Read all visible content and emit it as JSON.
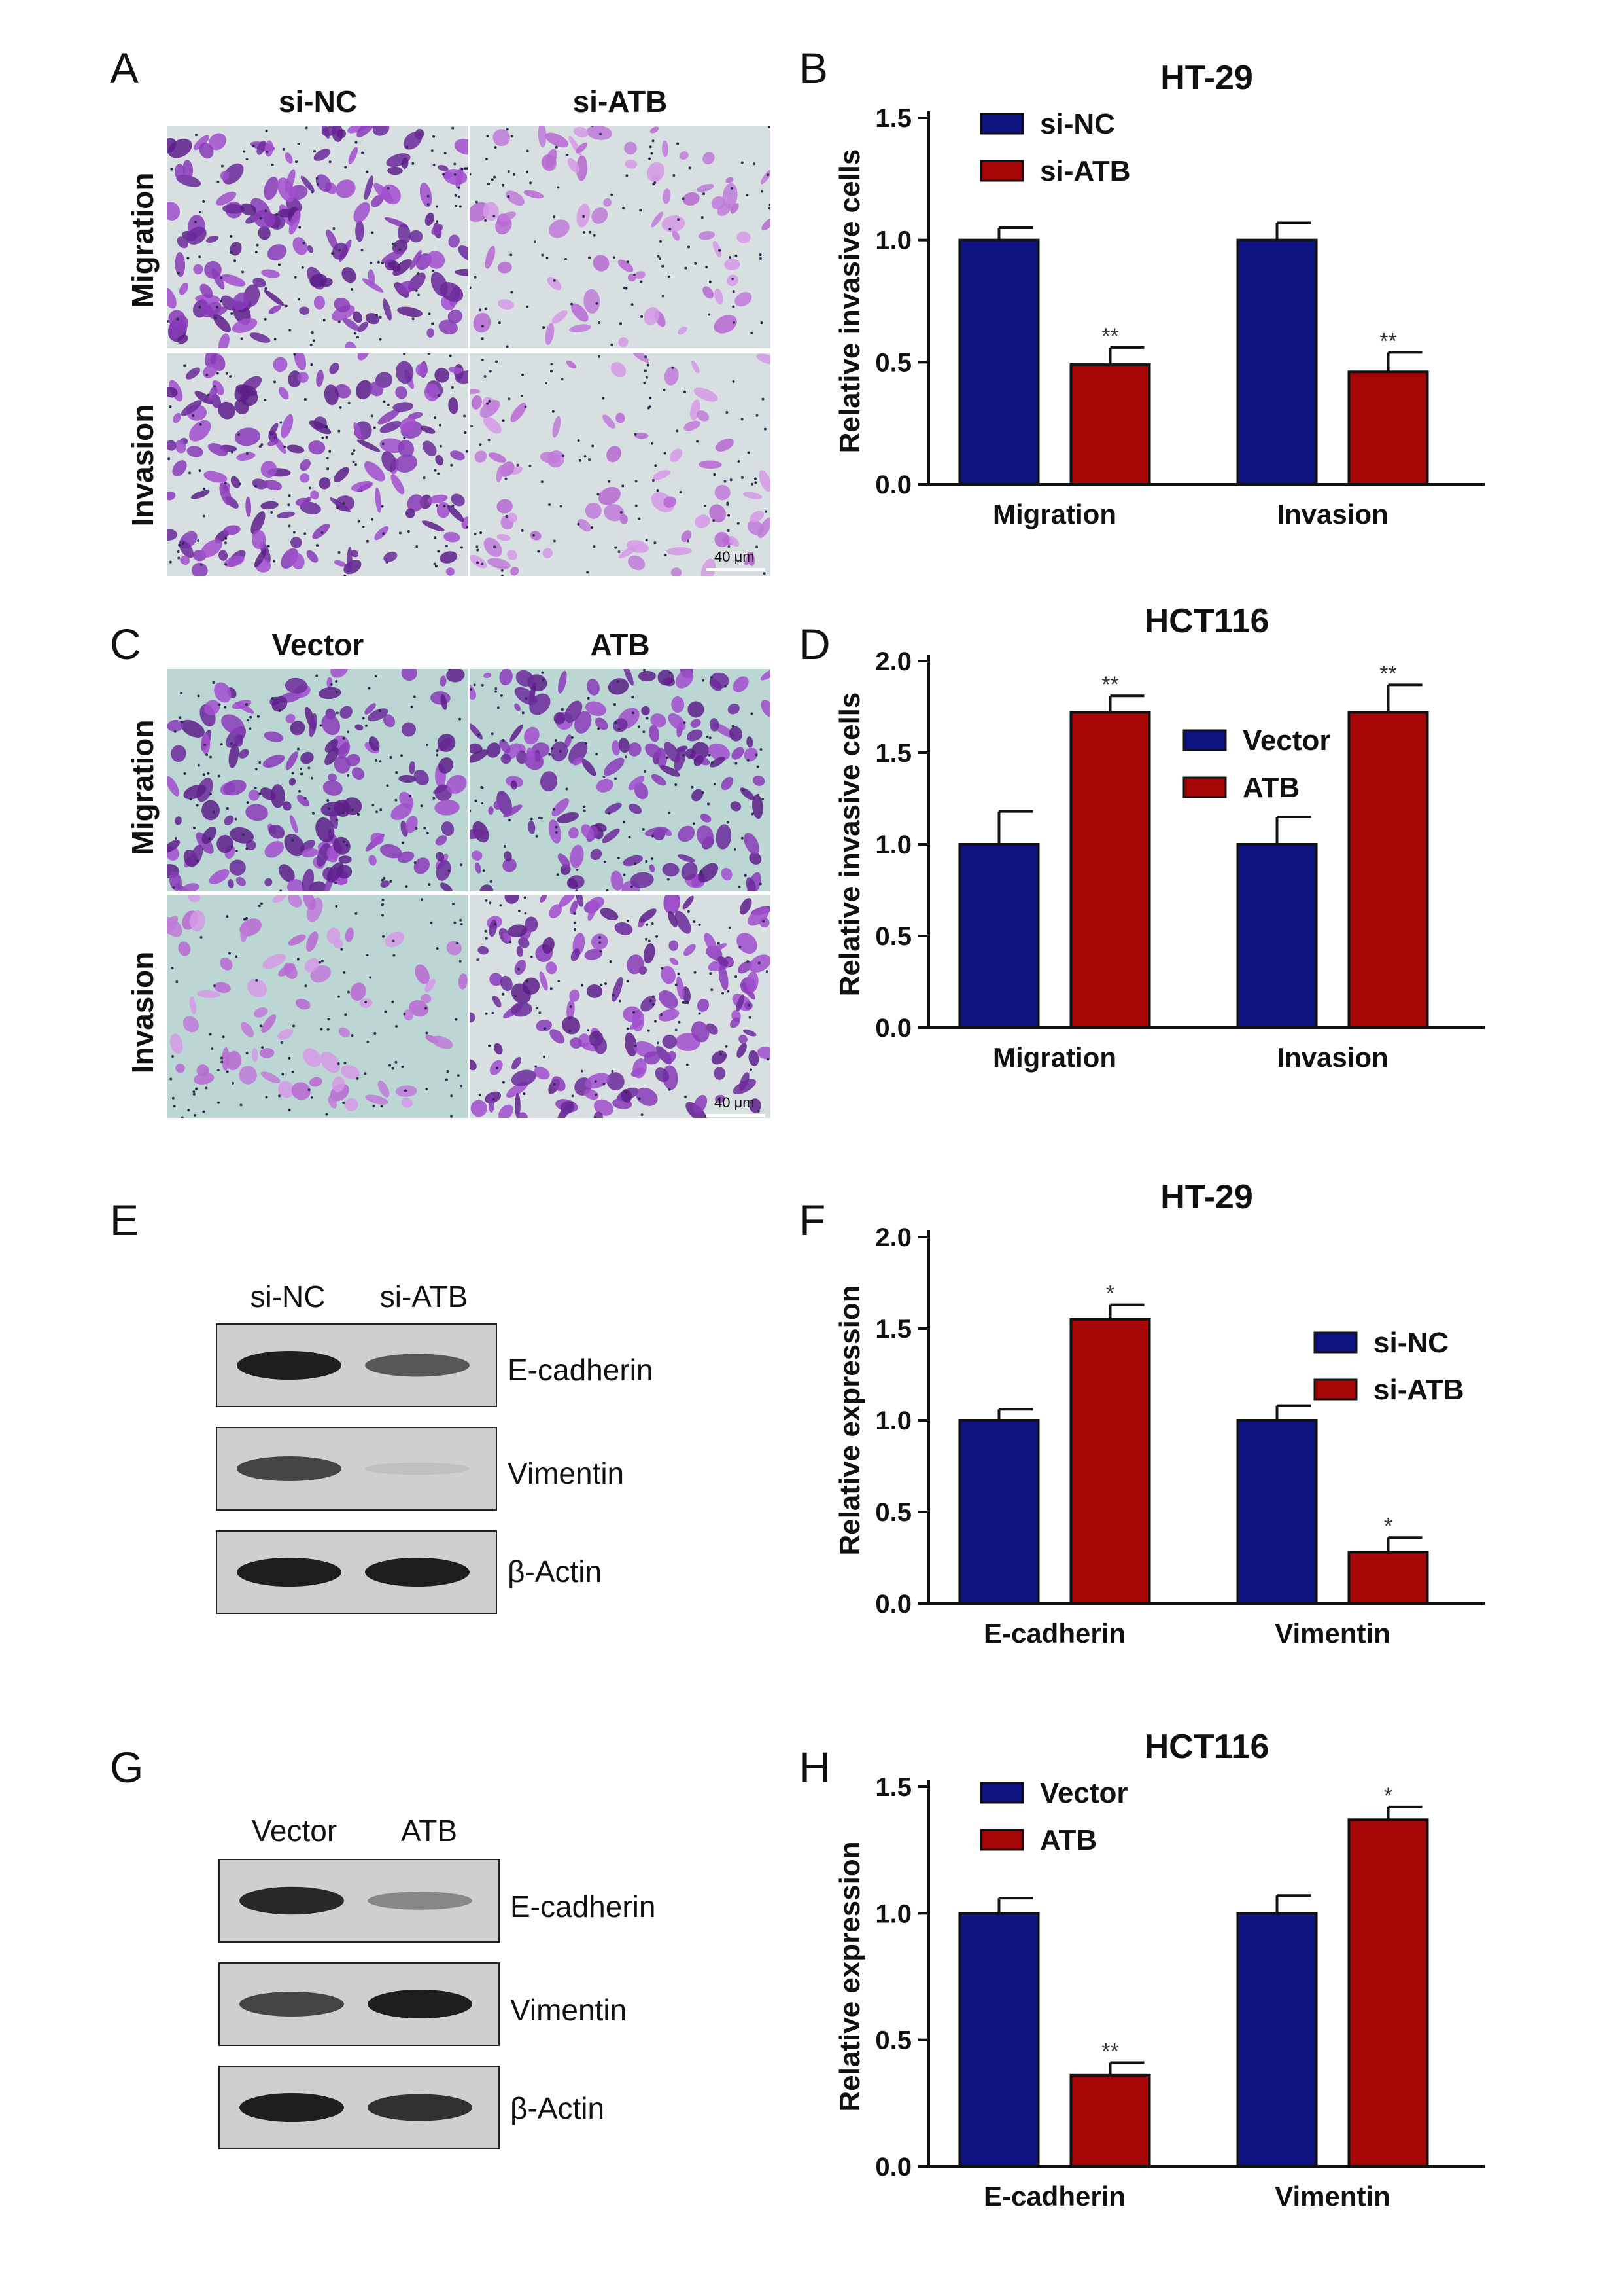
{
  "panel_letters": [
    "A",
    "B",
    "C",
    "D",
    "E",
    "F",
    "G",
    "H"
  ],
  "micrographs": [
    {
      "columns": [
        "si-NC",
        "si-ATB"
      ],
      "rows": [
        "Migration",
        "Invasion"
      ],
      "scale_bar": "40 μm"
    },
    {
      "columns": [
        "Vector",
        "ATB"
      ],
      "rows": [
        "Migration",
        "Invasion"
      ],
      "scale_bar": "40 μm"
    }
  ],
  "blots": [
    {
      "lanes": [
        "si-NC",
        "si-ATB"
      ],
      "proteins": [
        "E-cadherin",
        "Vimentin",
        "β-Actin"
      ]
    },
    {
      "lanes": [
        "Vector",
        "ATB"
      ],
      "proteins": [
        "E-cadherin",
        "Vimentin",
        "β-Actin"
      ]
    }
  ],
  "colors": {
    "series1": "#0d1380",
    "series2": "#a80606"
  },
  "chart_data": [
    {
      "panel": "B",
      "type": "bar",
      "title": "HT-29",
      "categories": [
        "Migration",
        "Invasion"
      ],
      "series": [
        {
          "name": "si-NC",
          "values": [
            1.0,
            1.0
          ],
          "errors": [
            0.05,
            0.07
          ],
          "marks": [
            "",
            ""
          ]
        },
        {
          "name": "si-ATB",
          "values": [
            0.49,
            0.46
          ],
          "errors": [
            0.07,
            0.08
          ],
          "marks": [
            "**",
            "**"
          ]
        }
      ],
      "xlabel": "",
      "ylabel": "Relative invasive cells",
      "ylim": [
        0,
        1.5
      ],
      "yticks": [
        "0.0",
        "0.5",
        "1.0",
        "1.5"
      ],
      "legend_position": "top-left"
    },
    {
      "panel": "D",
      "type": "bar",
      "title": "HCT116",
      "categories": [
        "Migration",
        "Invasion"
      ],
      "series": [
        {
          "name": "Vector",
          "values": [
            1.0,
            1.0
          ],
          "errors": [
            0.18,
            0.15
          ],
          "marks": [
            "",
            ""
          ]
        },
        {
          "name": "ATB",
          "values": [
            1.72,
            1.72
          ],
          "errors": [
            0.09,
            0.15
          ],
          "marks": [
            "**",
            "**"
          ]
        }
      ],
      "xlabel": "",
      "ylabel": "Relative invasive cells",
      "ylim": [
        0,
        2.0
      ],
      "yticks": [
        "0.0",
        "0.5",
        "1.0",
        "1.5",
        "2.0"
      ],
      "legend_position": "top-center"
    },
    {
      "panel": "F",
      "type": "bar",
      "title": "HT-29",
      "categories": [
        "E-cadherin",
        "Vimentin"
      ],
      "series": [
        {
          "name": "si-NC",
          "values": [
            1.0,
            1.0
          ],
          "errors": [
            0.06,
            0.08
          ],
          "marks": [
            "",
            ""
          ]
        },
        {
          "name": "si-ATB",
          "values": [
            1.55,
            0.28
          ],
          "errors": [
            0.08,
            0.08
          ],
          "marks": [
            "*",
            "*"
          ]
        }
      ],
      "xlabel": "",
      "ylabel": "Relative expression",
      "ylim": [
        0,
        2.0
      ],
      "yticks": [
        "0.0",
        "0.5",
        "1.0",
        "1.5",
        "2.0"
      ],
      "legend_position": "top-right"
    },
    {
      "panel": "H",
      "type": "bar",
      "title": "HCT116",
      "categories": [
        "E-cadherin",
        "Vimentin"
      ],
      "series": [
        {
          "name": "Vector",
          "values": [
            1.0,
            1.0
          ],
          "errors": [
            0.06,
            0.07
          ],
          "marks": [
            "",
            ""
          ]
        },
        {
          "name": "ATB",
          "values": [
            0.36,
            1.37
          ],
          "errors": [
            0.05,
            0.05
          ],
          "marks": [
            "**",
            "*"
          ]
        }
      ],
      "xlabel": "",
      "ylabel": "Relative expression",
      "ylim": [
        0,
        1.5
      ],
      "yticks": [
        "0.0",
        "0.5",
        "1.0",
        "1.5"
      ],
      "legend_position": "top-left"
    }
  ]
}
